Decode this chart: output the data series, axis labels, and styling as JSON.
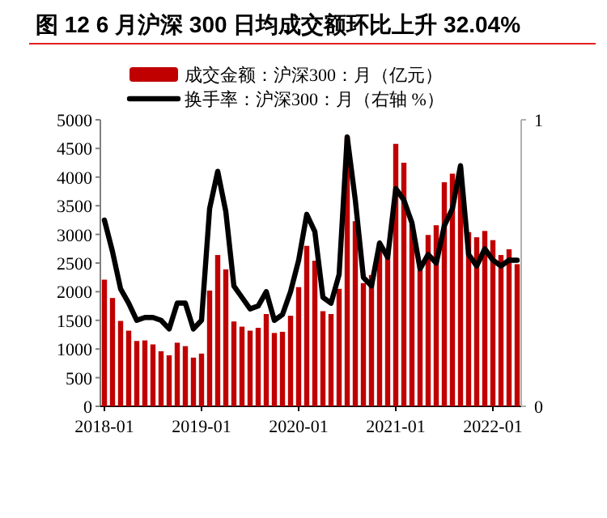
{
  "chart_data": {
    "type": "bar",
    "title": "图 12 6 月沪深 300 日均成交额环比上升 32.04%",
    "categories": [
      "2018-01",
      null,
      null,
      null,
      null,
      null,
      null,
      null,
      null,
      null,
      null,
      null,
      "2019-01",
      null,
      null,
      null,
      null,
      null,
      null,
      null,
      null,
      null,
      null,
      null,
      "2020-01",
      null,
      null,
      null,
      null,
      null,
      null,
      null,
      null,
      null,
      null,
      null,
      "2021-01",
      null,
      null,
      null,
      null,
      null,
      null,
      null,
      null,
      null,
      null,
      null,
      "2022-01",
      null,
      null,
      null
    ],
    "series": [
      {
        "name": "成交金额：沪深300：月（亿元）",
        "color": "#c00000",
        "values": [
          2210,
          1890,
          1490,
          1320,
          1140,
          1150,
          1080,
          960,
          890,
          1110,
          1050,
          850,
          920,
          2020,
          2640,
          2390,
          1480,
          1390,
          1320,
          1370,
          1610,
          1280,
          1300,
          1580,
          2080,
          2800,
          2540,
          1660,
          1610,
          2050,
          4710,
          3230,
          2150,
          2290,
          2850,
          2710,
          4580,
          4250,
          3180,
          2380,
          2990,
          3160,
          3910,
          4060,
          4170,
          3040,
          2950,
          3060,
          2900,
          2640,
          2740,
          2480
        ]
      },
      {
        "name": "换手率：沪深300：月（右轴 %）",
        "type": "line",
        "axis": "y2",
        "color": "#000000",
        "values": [
          0.65,
          0.54,
          0.41,
          0.36,
          0.3,
          0.31,
          0.31,
          0.3,
          0.27,
          0.36,
          0.36,
          0.27,
          0.3,
          0.69,
          0.82,
          0.68,
          0.42,
          0.38,
          0.34,
          0.35,
          0.4,
          0.3,
          0.32,
          0.4,
          0.51,
          0.67,
          0.61,
          0.38,
          0.36,
          0.46,
          0.94,
          0.72,
          0.45,
          0.42,
          0.57,
          0.52,
          0.76,
          0.72,
          0.64,
          0.48,
          0.53,
          0.5,
          0.63,
          0.69,
          0.84,
          0.53,
          0.49,
          0.55,
          0.51,
          0.49,
          0.51,
          0.51
        ]
      }
    ],
    "ylim": [
      0,
      5000
    ],
    "yticks": [
      0,
      500,
      1000,
      1500,
      2000,
      2500,
      3000,
      3500,
      4000,
      4500,
      5000
    ],
    "y2lim": [
      0,
      1
    ],
    "y2ticks": [
      0,
      1
    ],
    "legend": "top",
    "marker": "none",
    "line_style": "solid"
  }
}
